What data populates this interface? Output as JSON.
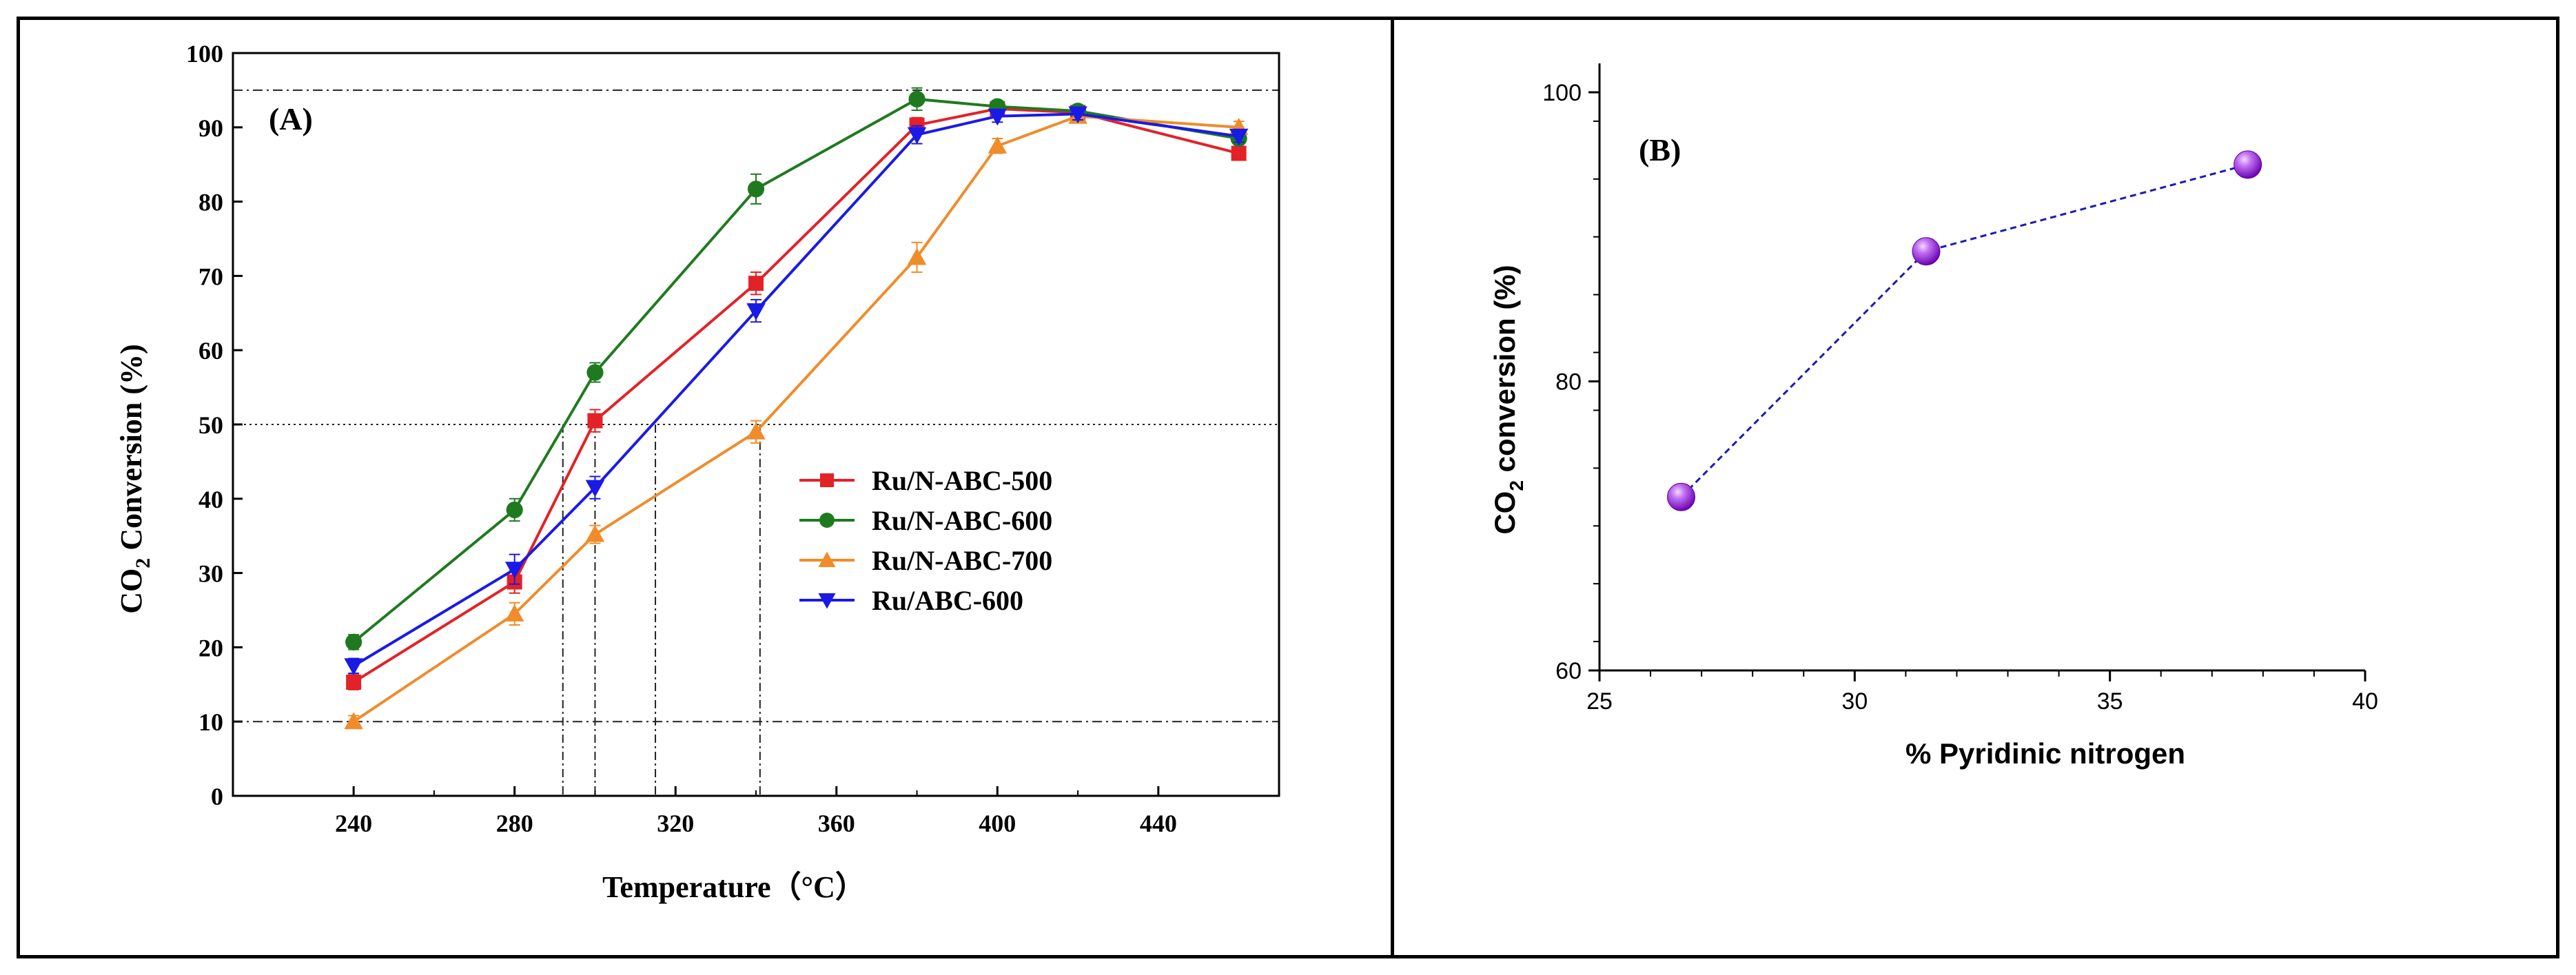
{
  "chart_data": [
    {
      "panel_label": "(A)",
      "type": "line",
      "title": "",
      "xlabel": "Temperature（°C）",
      "ylabel_main": "CO",
      "ylabel_sub": "2",
      "ylabel_rest": " Conversion (%)",
      "xlim": [
        210,
        470
      ],
      "ylim": [
        0,
        100
      ],
      "xticks": [
        240,
        280,
        320,
        360,
        400,
        440
      ],
      "yticks": [
        0,
        10,
        20,
        30,
        40,
        50,
        60,
        70,
        80,
        90,
        100
      ],
      "x": [
        240,
        280,
        300,
        340,
        380,
        400,
        420,
        460
      ],
      "series": [
        {
          "name": "Ru/N-ABC-500",
          "color": "#e32227",
          "marker": "square",
          "values": [
            15.3,
            28.8,
            50.5,
            69,
            90.3,
            92.5,
            92,
            86.5
          ],
          "errors": [
            1,
            1.5,
            1.5,
            1.5,
            1,
            0.8,
            0.8,
            0.8
          ]
        },
        {
          "name": "Ru/N-ABC-600",
          "color": "#1f7a1f",
          "marker": "circle",
          "values": [
            20.7,
            38.5,
            57,
            81.7,
            93.8,
            92.8,
            92.2,
            88.5
          ],
          "errors": [
            1,
            1.5,
            1.3,
            2,
            1.5,
            0.8,
            0.8,
            0.8
          ]
        },
        {
          "name": "Ru/N-ABC-700",
          "color": "#f08c2a",
          "marker": "triangle-up",
          "values": [
            10,
            24.5,
            35.2,
            49,
            72.5,
            87.5,
            91.5,
            90
          ],
          "errors": [
            0.8,
            1.5,
            1.2,
            1.5,
            2,
            1,
            0.8,
            0.8
          ]
        },
        {
          "name": "Ru/ABC-600",
          "color": "#1a1ae6",
          "marker": "triangle-down",
          "values": [
            17.5,
            30.5,
            41.5,
            65.3,
            89,
            91.5,
            91.8,
            88.8
          ],
          "errors": [
            1,
            2,
            1.5,
            1.5,
            1.2,
            0.8,
            0.8,
            0.8
          ]
        }
      ],
      "reference_hlines": [
        95,
        50,
        10
      ],
      "reference_vlines": [
        292,
        300,
        315,
        341
      ],
      "legend_position": "center-right"
    },
    {
      "panel_label": "(B)",
      "type": "scatter",
      "title": "",
      "xlabel": "% Pyridinic nitrogen",
      "ylabel_main": "CO",
      "ylabel_sub": "2",
      "ylabel_rest": " conversion (%)",
      "xlim": [
        25,
        40
      ],
      "ylim": [
        60,
        102
      ],
      "xticks": [
        25,
        30,
        35,
        40
      ],
      "yticks": [
        60,
        80,
        100
      ],
      "x": [
        26.6,
        31.4,
        37.7
      ],
      "y": [
        72,
        89,
        95
      ],
      "marker_color": "#8a0bd8",
      "line_color": "#1a1ab8"
    }
  ]
}
